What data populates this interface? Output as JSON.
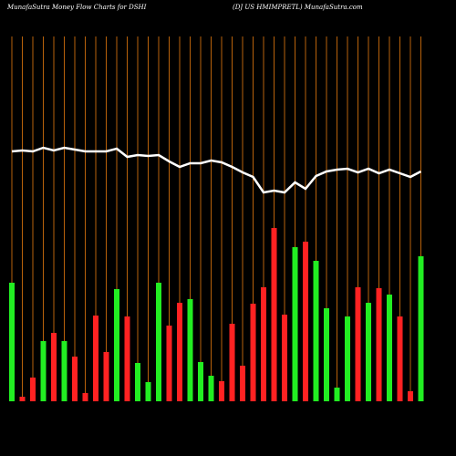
{
  "chart_data": {
    "type": "bar",
    "title": "MunafaSutra  Money Flow  Charts for DSHI",
    "subtitle": "(DJ US HMIMPRETL) MunafaSutra.com",
    "values": [
      130,
      5,
      26,
      66,
      75,
      66,
      49,
      9,
      94,
      54,
      123,
      93,
      42,
      21,
      130,
      83,
      108,
      112,
      43,
      28,
      22,
      85,
      39,
      107,
      125,
      190,
      95,
      169,
      175,
      154,
      102,
      15,
      93,
      125,
      108,
      124,
      117,
      93,
      11,
      159
    ],
    "colors": [
      "#22ee22",
      "#ff2222",
      "#ff2222",
      "#22ee22",
      "#ff2222",
      "#22ee22",
      "#ff2222",
      "#ff2222",
      "#ff2222",
      "#ff2222",
      "#22ee22",
      "#ff2222",
      "#22ee22",
      "#22ee22",
      "#22ee22",
      "#ff2222",
      "#ff2222",
      "#22ee22",
      "#22ee22",
      "#22ee22",
      "#ff2222",
      "#ff2222",
      "#ff2222",
      "#ff2222",
      "#ff2222",
      "#ff2222",
      "#ff2222",
      "#22ee22",
      "#ff2222",
      "#22ee22",
      "#22ee22",
      "#22ee22",
      "#22ee22",
      "#ff2222",
      "#22ee22",
      "#ff2222",
      "#22ee22",
      "#ff2222",
      "#ff2222",
      "#22ee22"
    ],
    "line": {
      "color": "#ffffff",
      "values": [
        274,
        275,
        274,
        278,
        275,
        278,
        276,
        274,
        274,
        274,
        277,
        268,
        270,
        269,
        270,
        263,
        257,
        261,
        261,
        264,
        262,
        257,
        251,
        246,
        229,
        231,
        229,
        240,
        233,
        247,
        252,
        254,
        255,
        251,
        255,
        250,
        254,
        250,
        246,
        252
      ]
    },
    "ylim": [
      0,
      300
    ]
  }
}
